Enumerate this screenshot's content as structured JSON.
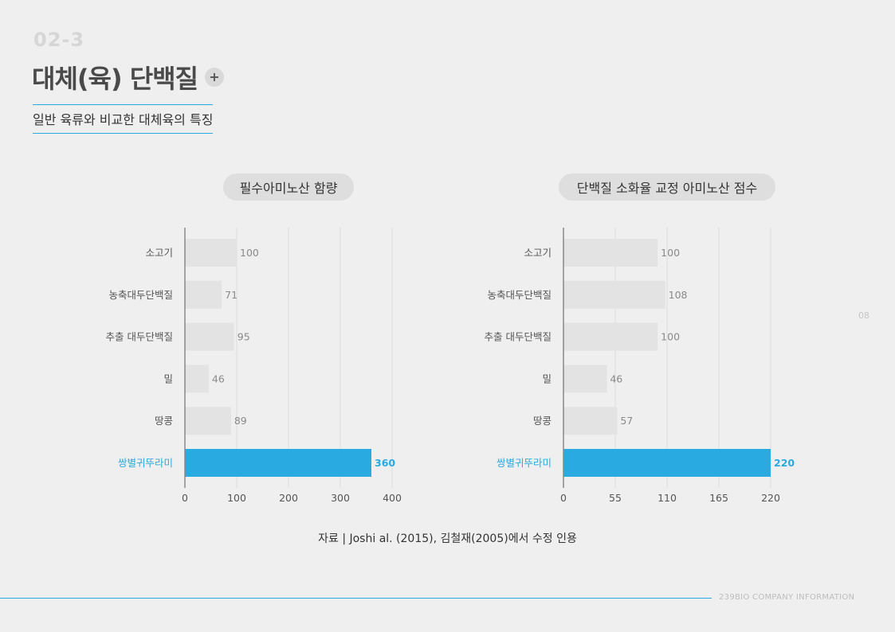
{
  "header": {
    "section_number": "02-3",
    "title": "대체(육) 단백질",
    "plus_label": "+",
    "subtitle": "일반 육류와 비교한 대체육의 특징"
  },
  "colors": {
    "highlight": "#29aae1",
    "bar": "#e3e3e3",
    "grid": "#dcdcdc",
    "axis": "#888888",
    "text": "#555555"
  },
  "chart_data": [
    {
      "type": "bar",
      "orientation": "horizontal",
      "title": "필수아미노산 함량",
      "categories": [
        "소고기",
        "농축대두단백질",
        "추출 대두단백질",
        "밀",
        "땅콩",
        "쌍별귀뚜라미"
      ],
      "values": [
        100,
        71,
        95,
        46,
        89,
        360
      ],
      "value_labels": [
        "100",
        "71",
        "95",
        "46",
        "89",
        "360"
      ],
      "highlight_index": 5,
      "xlim": [
        0,
        400
      ],
      "xticks": [
        "0",
        "100",
        "200",
        "300",
        "400"
      ],
      "xtick_values": [
        0,
        100,
        200,
        300,
        400
      ],
      "grid": true
    },
    {
      "type": "bar",
      "orientation": "horizontal",
      "title": "단백질 소화율 교정 아미노산 점수",
      "categories": [
        "소고기",
        "농축대두단백질",
        "추출 대두단백질",
        "밀",
        "땅콩",
        "쌍별귀뚜라미"
      ],
      "values": [
        100,
        108,
        100,
        46,
        57,
        220
      ],
      "value_labels": [
        "100",
        "108",
        "100",
        "46",
        "57",
        "220"
      ],
      "highlight_index": 5,
      "xlim": [
        0,
        220
      ],
      "xticks": [
        "0",
        "55",
        "110",
        "165",
        "220"
      ],
      "xtick_values": [
        0,
        55,
        110,
        165,
        220
      ],
      "grid": true
    }
  ],
  "side_page_number": "08",
  "source_note": "자료 | Joshi al. (2015), 김철재(2005)에서 수정 인용",
  "footer": {
    "company": "239BIO COMPANY INFORMATION"
  }
}
